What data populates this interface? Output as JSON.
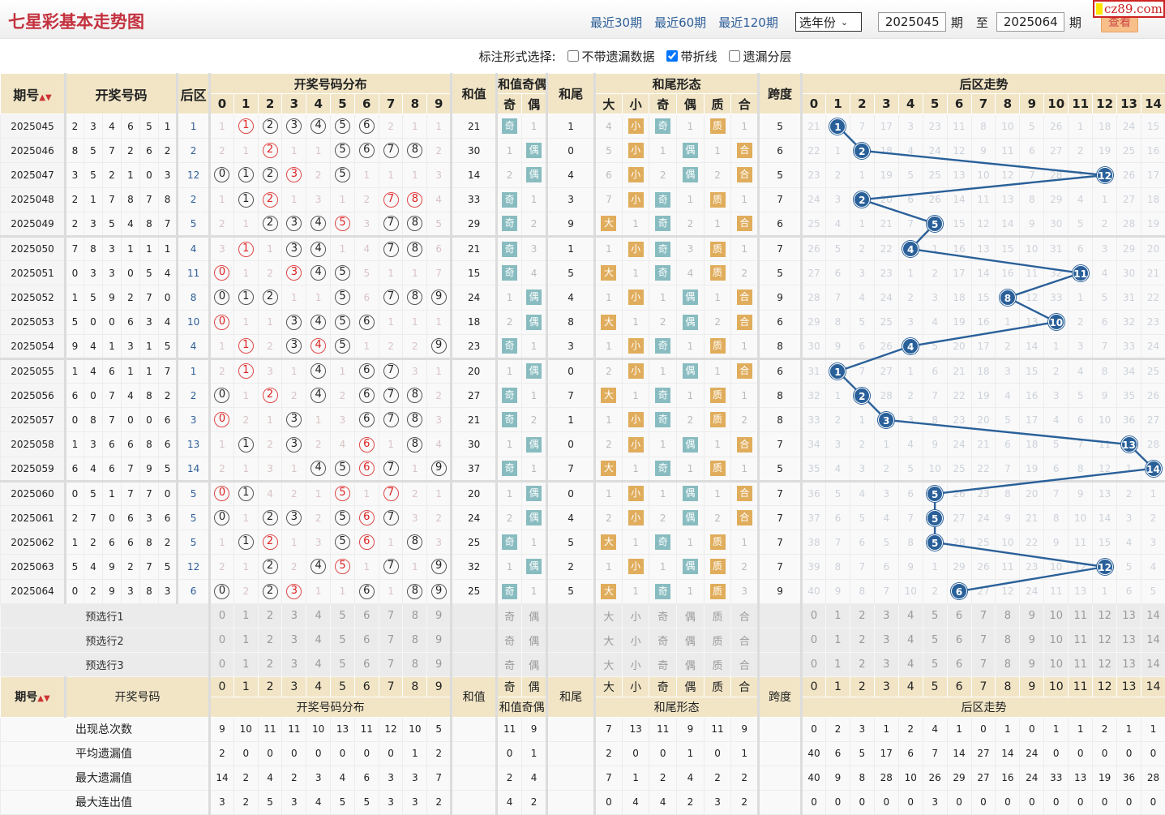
{
  "header": {
    "title": "七星彩基本走势图",
    "links": [
      "最近30期",
      "最近60期",
      "最近120期"
    ],
    "year_select": "选年份",
    "from": "2025045",
    "from_suffix": "期",
    "to_label": "至",
    "to": "2025064",
    "to_suffix": "期",
    "view_button": "查看",
    "logo": "cz89.com"
  },
  "options": {
    "label": "标注形式选择:",
    "items": [
      {
        "label": "不带遗漏数据",
        "checked": false
      },
      {
        "label": "带折线",
        "checked": true
      },
      {
        "label": "遗漏分层",
        "checked": false
      }
    ]
  },
  "table_header": {
    "period": "期号",
    "draw": "开奖号码",
    "back": "后区",
    "dist": "开奖号码分布",
    "sum": "和值",
    "oe": "和值奇偶",
    "oe_cols": [
      "奇",
      "偶"
    ],
    "tail": "和尾",
    "form": "和尾形态",
    "form_cols": [
      "大",
      "小",
      "奇",
      "偶",
      "质",
      "合"
    ],
    "span": "跨度",
    "trend": "后区走势",
    "dist_cols": [
      "0",
      "1",
      "2",
      "3",
      "4",
      "5",
      "6",
      "7",
      "8",
      "9"
    ],
    "trend_cols": [
      "0",
      "1",
      "2",
      "3",
      "4",
      "5",
      "6",
      "7",
      "8",
      "9",
      "10",
      "11",
      "12",
      "13",
      "14"
    ]
  },
  "rows": [
    {
      "period": "2025045",
      "draw": [
        2,
        3,
        4,
        6,
        5,
        1
      ],
      "back": 1,
      "miss": [
        1,
        null,
        null,
        null,
        null,
        null,
        null,
        2,
        1,
        1
      ],
      "sum": 21,
      "oe": [
        "奇",
        "1"
      ],
      "tail": 1,
      "form": [
        "4",
        "小",
        "奇",
        "1",
        "质",
        "1"
      ],
      "span": 5,
      "trend": [
        21,
        1,
        7,
        17,
        3,
        23,
        11,
        8,
        10,
        5,
        26,
        1,
        18,
        24,
        15
      ]
    },
    {
      "period": "2025046",
      "draw": [
        8,
        5,
        7,
        2,
        6,
        2
      ],
      "back": 2,
      "miss": [
        2,
        1,
        null,
        1,
        1,
        null,
        null,
        null,
        null,
        2
      ],
      "sum": 30,
      "oe": [
        "1",
        "偶"
      ],
      "tail": 0,
      "form": [
        "5",
        "小",
        "1",
        "偶",
        "1",
        "合"
      ],
      "span": 6,
      "trend": [
        22,
        1,
        2,
        18,
        4,
        24,
        12,
        9,
        11,
        6,
        27,
        2,
        19,
        25,
        16
      ]
    },
    {
      "period": "2025047",
      "draw": [
        3,
        5,
        2,
        1,
        0,
        3
      ],
      "back": 12,
      "miss": [
        null,
        null,
        null,
        null,
        2,
        null,
        1,
        1,
        1,
        3
      ],
      "sum": 14,
      "oe": [
        "2",
        "偶"
      ],
      "tail": 4,
      "form": [
        "6",
        "小",
        "2",
        "偶",
        "2",
        "合"
      ],
      "span": 5,
      "trend": [
        23,
        2,
        1,
        19,
        5,
        25,
        13,
        10,
        12,
        7,
        28,
        3,
        12,
        26,
        17
      ]
    },
    {
      "period": "2025048",
      "draw": [
        2,
        1,
        7,
        8,
        7,
        8
      ],
      "back": 2,
      "miss": [
        1,
        null,
        null,
        1,
        3,
        1,
        2,
        null,
        null,
        4
      ],
      "sum": 33,
      "oe": [
        "奇",
        "1"
      ],
      "tail": 3,
      "form": [
        "7",
        "小",
        "奇",
        "1",
        "质",
        "1"
      ],
      "span": 7,
      "trend": [
        24,
        3,
        2,
        20,
        6,
        26,
        14,
        11,
        13,
        8,
        29,
        4,
        1,
        27,
        18
      ]
    },
    {
      "period": "2025049",
      "draw": [
        2,
        3,
        5,
        4,
        8,
        7
      ],
      "back": 5,
      "miss": [
        2,
        1,
        null,
        null,
        null,
        null,
        3,
        null,
        null,
        5
      ],
      "sum": 29,
      "oe": [
        "奇",
        "2"
      ],
      "tail": 9,
      "form": [
        "大",
        "1",
        "奇",
        "2",
        "1",
        "合"
      ],
      "span": 6,
      "trend": [
        25,
        4,
        1,
        21,
        7,
        5,
        15,
        12,
        14,
        9,
        30,
        5,
        2,
        28,
        19
      ]
    },
    {
      "period": "2025050",
      "draw": [
        7,
        8,
        3,
        1,
        1,
        1
      ],
      "back": 4,
      "miss": [
        3,
        null,
        1,
        null,
        null,
        1,
        4,
        null,
        null,
        6
      ],
      "sum": 21,
      "oe": [
        "奇",
        "3"
      ],
      "tail": 1,
      "form": [
        "1",
        "小",
        "奇",
        "3",
        "质",
        "1"
      ],
      "span": 7,
      "trend": [
        26,
        5,
        2,
        22,
        4,
        1,
        16,
        13,
        15,
        10,
        31,
        6,
        3,
        29,
        20
      ]
    },
    {
      "period": "2025051",
      "draw": [
        0,
        3,
        3,
        0,
        5,
        4
      ],
      "back": 11,
      "miss": [
        null,
        1,
        2,
        null,
        null,
        null,
        5,
        1,
        1,
        7
      ],
      "sum": 15,
      "oe": [
        "奇",
        "4"
      ],
      "tail": 5,
      "form": [
        "大",
        "1",
        "奇",
        "4",
        "质",
        "2"
      ],
      "span": 5,
      "trend": [
        27,
        6,
        3,
        23,
        1,
        2,
        17,
        14,
        16,
        11,
        32,
        11,
        4,
        30,
        21
      ]
    },
    {
      "period": "2025052",
      "draw": [
        1,
        5,
        9,
        2,
        7,
        0
      ],
      "back": 8,
      "miss": [
        null,
        null,
        null,
        1,
        1,
        null,
        6,
        null,
        null,
        null
      ],
      "sum": 24,
      "oe": [
        "1",
        "偶"
      ],
      "tail": 4,
      "form": [
        "1",
        "小",
        "1",
        "偶",
        "1",
        "合"
      ],
      "span": 9,
      "trend": [
        28,
        7,
        4,
        24,
        2,
        3,
        18,
        15,
        8,
        12,
        33,
        1,
        5,
        31,
        22
      ]
    },
    {
      "period": "2025053",
      "draw": [
        5,
        0,
        0,
        6,
        3,
        4
      ],
      "back": 10,
      "miss": [
        null,
        1,
        1,
        null,
        null,
        null,
        null,
        1,
        1,
        1
      ],
      "sum": 18,
      "oe": [
        "2",
        "偶"
      ],
      "tail": 8,
      "form": [
        "大",
        "1",
        "2",
        "偶",
        "2",
        "合"
      ],
      "span": 6,
      "trend": [
        29,
        8,
        5,
        25,
        3,
        4,
        19,
        16,
        1,
        13,
        10,
        2,
        6,
        32,
        23
      ]
    },
    {
      "period": "2025054",
      "draw": [
        9,
        4,
        1,
        3,
        1,
        5
      ],
      "back": 4,
      "miss": [
        1,
        null,
        2,
        null,
        null,
        null,
        1,
        2,
        2,
        null
      ],
      "sum": 23,
      "oe": [
        "奇",
        "1"
      ],
      "tail": 3,
      "form": [
        "1",
        "小",
        "奇",
        "1",
        "质",
        "1"
      ],
      "span": 8,
      "trend": [
        30,
        9,
        6,
        26,
        4,
        5,
        20,
        17,
        2,
        14,
        1,
        3,
        7,
        33,
        24
      ]
    },
    {
      "period": "2025055",
      "draw": [
        1,
        4,
        6,
        1,
        1,
        7
      ],
      "back": 1,
      "miss": [
        2,
        null,
        3,
        1,
        null,
        1,
        null,
        null,
        3,
        1
      ],
      "sum": 20,
      "oe": [
        "1",
        "偶"
      ],
      "tail": 0,
      "form": [
        "2",
        "小",
        "1",
        "偶",
        "1",
        "合"
      ],
      "span": 6,
      "trend": [
        31,
        1,
        7,
        27,
        1,
        6,
        21,
        18,
        3,
        15,
        2,
        4,
        8,
        34,
        25
      ]
    },
    {
      "period": "2025056",
      "draw": [
        6,
        0,
        7,
        4,
        8,
        2
      ],
      "back": 2,
      "miss": [
        null,
        1,
        null,
        2,
        null,
        2,
        null,
        null,
        null,
        2
      ],
      "sum": 27,
      "oe": [
        "奇",
        "1"
      ],
      "tail": 7,
      "form": [
        "大",
        "1",
        "奇",
        "1",
        "质",
        "1"
      ],
      "span": 8,
      "trend": [
        32,
        1,
        2,
        28,
        2,
        7,
        22,
        19,
        4,
        16,
        3,
        5,
        9,
        35,
        26
      ]
    },
    {
      "period": "2025057",
      "draw": [
        0,
        8,
        7,
        0,
        0,
        6
      ],
      "back": 3,
      "miss": [
        null,
        2,
        1,
        null,
        1,
        3,
        null,
        null,
        null,
        3
      ],
      "sum": 21,
      "oe": [
        "奇",
        "2"
      ],
      "tail": 1,
      "form": [
        "1",
        "小",
        "奇",
        "2",
        "质",
        "2"
      ],
      "span": 8,
      "trend": [
        33,
        2,
        1,
        3,
        3,
        8,
        23,
        20,
        5,
        17,
        4,
        6,
        10,
        36,
        27
      ]
    },
    {
      "period": "2025058",
      "draw": [
        1,
        3,
        6,
        6,
        8,
        6
      ],
      "back": 13,
      "miss": [
        1,
        null,
        2,
        null,
        2,
        4,
        null,
        1,
        null,
        4
      ],
      "sum": 30,
      "oe": [
        "1",
        "偶"
      ],
      "tail": 0,
      "form": [
        "2",
        "小",
        "1",
        "偶",
        "1",
        "合"
      ],
      "span": 7,
      "trend": [
        34,
        3,
        2,
        1,
        4,
        9,
        24,
        21,
        6,
        18,
        5,
        7,
        11,
        13,
        28
      ]
    },
    {
      "period": "2025059",
      "draw": [
        6,
        4,
        6,
        7,
        9,
        5
      ],
      "back": 14,
      "miss": [
        2,
        1,
        3,
        1,
        null,
        null,
        null,
        null,
        1,
        null
      ],
      "sum": 37,
      "oe": [
        "奇",
        "1"
      ],
      "tail": 7,
      "form": [
        "大",
        "1",
        "奇",
        "1",
        "质",
        "1"
      ],
      "span": 5,
      "trend": [
        35,
        4,
        3,
        2,
        5,
        10,
        25,
        22,
        7,
        19,
        6,
        8,
        12,
        1,
        14
      ]
    },
    {
      "period": "2025060",
      "draw": [
        0,
        5,
        1,
        7,
        7,
        0
      ],
      "back": 5,
      "miss": [
        null,
        null,
        4,
        2,
        1,
        null,
        1,
        null,
        2,
        1
      ],
      "sum": 20,
      "oe": [
        "1",
        "偶"
      ],
      "tail": 0,
      "form": [
        "1",
        "小",
        "1",
        "偶",
        "1",
        "合"
      ],
      "span": 7,
      "trend": [
        36,
        5,
        4,
        3,
        6,
        5,
        26,
        23,
        8,
        20,
        7,
        9,
        13,
        2,
        1
      ]
    },
    {
      "period": "2025061",
      "draw": [
        2,
        7,
        0,
        6,
        3,
        6
      ],
      "back": 5,
      "miss": [
        null,
        1,
        null,
        null,
        2,
        null,
        null,
        null,
        3,
        2
      ],
      "sum": 24,
      "oe": [
        "2",
        "偶"
      ],
      "tail": 4,
      "form": [
        "2",
        "小",
        "2",
        "偶",
        "2",
        "合"
      ],
      "span": 7,
      "trend": [
        37,
        6,
        5,
        4,
        7,
        5,
        27,
        24,
        9,
        21,
        8,
        10,
        14,
        3,
        2
      ]
    },
    {
      "period": "2025062",
      "draw": [
        1,
        2,
        6,
        6,
        8,
        2
      ],
      "back": 5,
      "miss": [
        1,
        null,
        null,
        1,
        3,
        null,
        null,
        1,
        null,
        3
      ],
      "sum": 25,
      "oe": [
        "奇",
        "1"
      ],
      "tail": 5,
      "form": [
        "大",
        "1",
        "奇",
        "1",
        "质",
        "1"
      ],
      "span": 7,
      "trend": [
        38,
        7,
        6,
        5,
        8,
        5,
        28,
        25,
        10,
        22,
        9,
        11,
        15,
        4,
        3
      ]
    },
    {
      "period": "2025063",
      "draw": [
        5,
        4,
        9,
        2,
        7,
        5
      ],
      "back": 12,
      "miss": [
        2,
        1,
        null,
        2,
        null,
        null,
        1,
        null,
        1,
        null
      ],
      "sum": 32,
      "oe": [
        "1",
        "偶"
      ],
      "tail": 2,
      "form": [
        "1",
        "小",
        "1",
        "偶",
        "质",
        "2"
      ],
      "span": 7,
      "trend": [
        39,
        8,
        7,
        6,
        9,
        1,
        29,
        26,
        11,
        23,
        10,
        12,
        12,
        5,
        4
      ]
    },
    {
      "period": "2025064",
      "draw": [
        0,
        2,
        9,
        3,
        8,
        3
      ],
      "back": 6,
      "miss": [
        null,
        2,
        null,
        null,
        1,
        1,
        null,
        1,
        null,
        null
      ],
      "sum": 25,
      "oe": [
        "奇",
        "1"
      ],
      "tail": 5,
      "form": [
        "大",
        "1",
        "奇",
        "1",
        "质",
        "3"
      ],
      "span": 9,
      "trend": [
        40,
        9,
        8,
        7,
        10,
        2,
        6,
        27,
        12,
        24,
        11,
        13,
        1,
        6,
        5
      ]
    }
  ],
  "preselect": [
    {
      "label": "预选行1"
    },
    {
      "label": "预选行2"
    },
    {
      "label": "预选行3"
    }
  ],
  "stats": [
    {
      "label": "出现总次数",
      "dist": [
        9,
        10,
        11,
        11,
        10,
        13,
        11,
        12,
        10,
        5
      ],
      "oe": [
        11,
        9
      ],
      "form": [
        7,
        13,
        11,
        9,
        11,
        9
      ],
      "trend": [
        0,
        2,
        3,
        1,
        2,
        4,
        1,
        0,
        1,
        0,
        1,
        1,
        2,
        1,
        1
      ]
    },
    {
      "label": "平均遗漏值",
      "dist": [
        2,
        0,
        0,
        0,
        0,
        0,
        0,
        0,
        1,
        2
      ],
      "oe": [
        0,
        1
      ],
      "form": [
        2,
        0,
        0,
        1,
        0,
        1
      ],
      "trend": [
        40,
        6,
        5,
        17,
        6,
        7,
        14,
        27,
        14,
        24,
        0,
        0,
        0,
        0,
        0
      ]
    },
    {
      "label": "最大遗漏值",
      "dist": [
        14,
        2,
        4,
        2,
        3,
        4,
        6,
        3,
        3,
        7
      ],
      "oe": [
        2,
        4
      ],
      "form": [
        7,
        1,
        2,
        4,
        2,
        2
      ],
      "trend": [
        40,
        9,
        8,
        28,
        10,
        26,
        29,
        27,
        16,
        24,
        33,
        13,
        19,
        36,
        28
      ]
    },
    {
      "label": "最大连出值",
      "dist": [
        3,
        2,
        5,
        3,
        4,
        5,
        5,
        3,
        3,
        2
      ],
      "oe": [
        4,
        2
      ],
      "form": [
        0,
        4,
        4,
        2,
        3,
        2
      ],
      "trend": [
        0,
        0,
        0,
        0,
        0,
        3,
        0,
        0,
        0,
        0,
        0,
        0,
        0,
        0,
        0
      ]
    }
  ],
  "colors": {
    "title": "#c4323f",
    "link": "#2e5f99",
    "header_bg": "#f1e5c6",
    "odd_even_tag": "#88bcc0",
    "size_prime_tag": "#e0ad5c",
    "trend_ball": "#2a6099",
    "repeat_circle": "#e04848"
  }
}
